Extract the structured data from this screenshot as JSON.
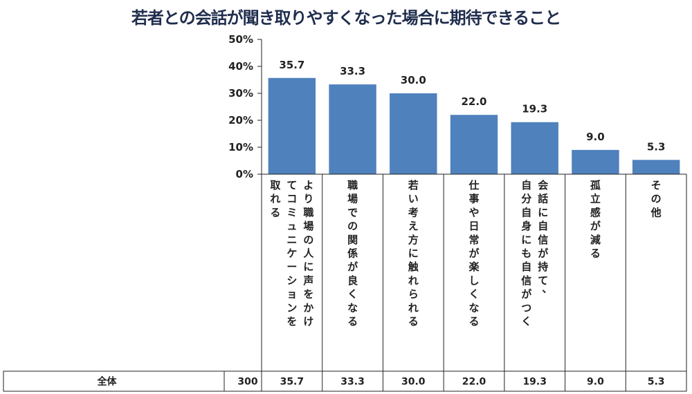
{
  "chart_data": {
    "type": "bar",
    "title": "若者との会話が聞き取りやすくなった場合に期待できること",
    "categories": [
      [
        "より職場の人に声をかけ",
        "てコミュニケーションを",
        "取れる"
      ],
      [
        "職場での関係が良くなる"
      ],
      [
        "若い考え方に触れられる"
      ],
      [
        "仕事や日常が楽しくなる"
      ],
      [
        "会話に自信が持て、",
        "自分自身にも自信がつく"
      ],
      [
        "孤立感が減る"
      ],
      [
        "その他"
      ]
    ],
    "values": [
      35.7,
      33.3,
      30.0,
      22.0,
      19.3,
      9.0,
      5.3
    ],
    "data_labels": [
      "35.7",
      "33.3",
      "30.0",
      "22.0",
      "19.3",
      "9.0",
      "5.3"
    ],
    "yticks": [
      "50%",
      "40%",
      "30%",
      "20%",
      "10%",
      "0%"
    ],
    "ylim": [
      0,
      50
    ],
    "bar_color": "#4f81bd",
    "table": {
      "row_label": "全体",
      "n": "300",
      "values": [
        "35.7",
        "33.3",
        "30.0",
        "22.0",
        "19.3",
        "9.0",
        "5.3"
      ]
    }
  }
}
